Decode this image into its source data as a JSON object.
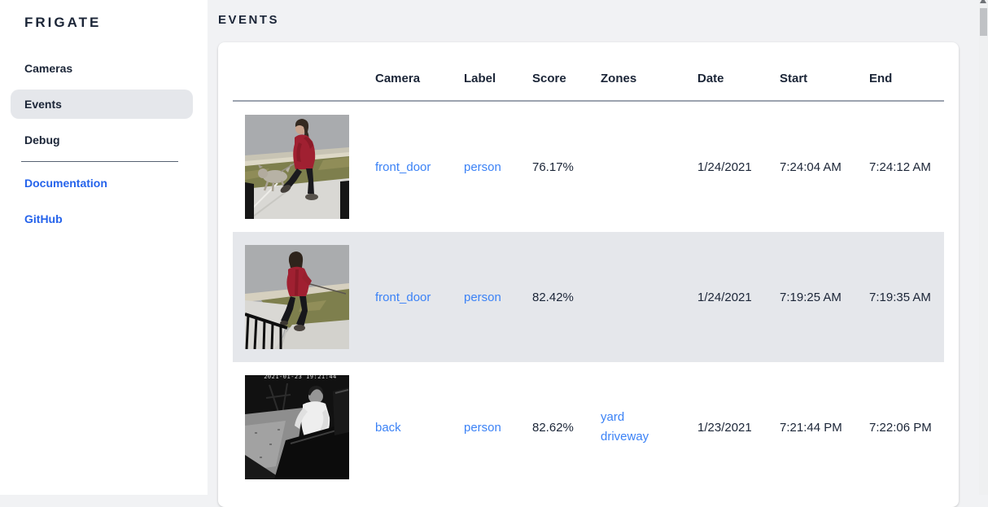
{
  "app": {
    "title": "FRIGATE"
  },
  "sidebar": {
    "items": [
      {
        "label": "Cameras",
        "selected": false
      },
      {
        "label": "Events",
        "selected": true
      },
      {
        "label": "Debug",
        "selected": false
      }
    ],
    "links": [
      {
        "label": "Documentation"
      },
      {
        "label": "GitHub"
      }
    ]
  },
  "main": {
    "heading": "EVENTS",
    "table": {
      "columns": [
        "Camera",
        "Label",
        "Score",
        "Zones",
        "Date",
        "Start",
        "End"
      ],
      "rows": [
        {
          "camera": "front_door",
          "label": "person",
          "score": "76.17%",
          "zones": [],
          "date": "1/24/2021",
          "start": "7:24:04 AM",
          "end": "7:24:12 AM",
          "selected": false,
          "thumbnail": {
            "scene": "scene-front-door-1",
            "alt": "person in red coat walking a dog on sidewalk"
          }
        },
        {
          "camera": "front_door",
          "label": "person",
          "score": "82.42%",
          "zones": [],
          "date": "1/24/2021",
          "start": "7:19:25 AM",
          "end": "7:19:35 AM",
          "selected": true,
          "thumbnail": {
            "scene": "scene-front-door-2",
            "alt": "person in red jacket walking dog past railing"
          }
        },
        {
          "camera": "back",
          "label": "person",
          "score": "82.62%",
          "zones": [
            "yard",
            "driveway"
          ],
          "date": "1/23/2021",
          "start": "7:21:44 PM",
          "end": "7:22:06 PM",
          "selected": false,
          "thumbnail": {
            "scene": "scene-back-1",
            "alt": "night grayscale view of person in white shirt by truck bed",
            "overlay": "2021-01-23 19:21:44"
          }
        }
      ]
    }
  },
  "colors": {
    "main_bg": "#f1f2f4",
    "sidebar_bg": "#ffffff",
    "card_bg": "#ffffff",
    "selected_bg": "#e5e7eb",
    "text_dark": "#1b2537",
    "table_link": "#3b82f6",
    "sidebar_link": "#2563eb",
    "header_line": "#9ca3af",
    "divider": "#566272",
    "scroll_track": "#eff0f1",
    "scroll_thumb": "#c0c2c5"
  }
}
